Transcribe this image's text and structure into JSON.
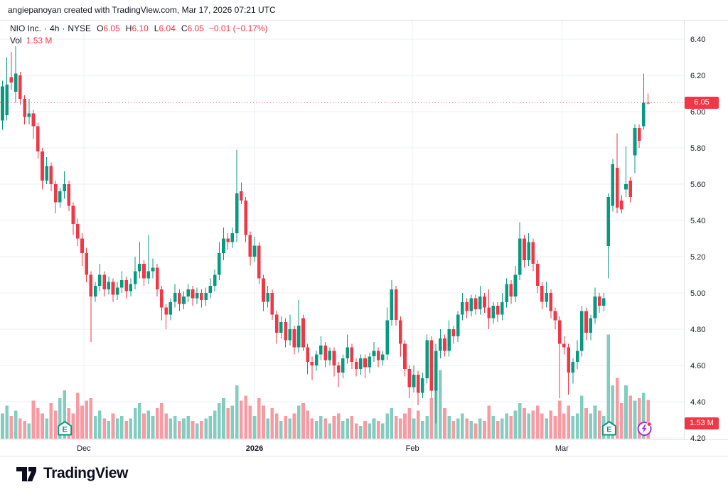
{
  "header": {
    "attribution": "angiepanoyan created with TradingView.com, Mar 17, 2026 07:21 UTC"
  },
  "legend": {
    "symbol": "NIO Inc.",
    "separator": "·",
    "interval": "4h",
    "exchange": "NYSE",
    "o_label": "O",
    "o_value": "6.05",
    "h_label": "H",
    "h_value": "6.10",
    "l_label": "L",
    "l_value": "6.04",
    "c_label": "C",
    "c_value": "6.05",
    "change": "−0.01 (−0.17%)",
    "vol_label": "Vol",
    "vol_value": "1.53 M"
  },
  "price_axis": {
    "last_price_label": "6.05",
    "last_volume_label": "1.53 M"
  },
  "footer": {
    "logo_text": "TradingView"
  },
  "colors": {
    "up": "#089981",
    "down": "#f23645",
    "vol_up": "#83ccc0",
    "vol_down": "#f89aa2",
    "grid": "#eceff4",
    "axis_line": "#e0e3eb",
    "text": "#131722",
    "badge": "#f23645",
    "marker": "#089981",
    "flash": "#a333d8"
  },
  "chart_data": {
    "type": "candlestick+volume",
    "title": "NIO Inc. · 4h · NYSE",
    "ylim": [
      4.2,
      6.4
    ],
    "price_ticks": [
      6.4,
      6.2,
      6.0,
      5.8,
      5.6,
      5.4,
      5.2,
      5.0,
      4.8,
      4.6,
      4.4,
      4.2
    ],
    "time_labels": [
      {
        "label": "Dec",
        "index": 18.4,
        "major": false
      },
      {
        "label": "2026",
        "index": 57,
        "major": true
      },
      {
        "label": "Feb",
        "index": 92.7,
        "major": false
      },
      {
        "label": "Mar",
        "index": 126.5,
        "major": false
      }
    ],
    "price_line": {
      "value": 6.05
    },
    "last": {
      "open": 6.05,
      "high": 6.1,
      "low": 6.04,
      "close": 6.05,
      "change": -0.01,
      "change_pct": -0.17,
      "volume_m": 1.53
    },
    "markers": [
      {
        "type": "earnings",
        "index": 14.1
      },
      {
        "type": "earnings",
        "index": 137.2
      },
      {
        "type": "flash",
        "index": 145.2
      }
    ],
    "volume_axis": {
      "max_m": 4.2
    },
    "candles_format": [
      "open",
      "high",
      "low",
      "close",
      "volume_m"
    ],
    "candles": [
      [
        5.95,
        6.17,
        5.9,
        6.14,
        1.0
      ],
      [
        5.98,
        6.3,
        5.95,
        6.15,
        1.3
      ],
      [
        6.19,
        6.33,
        6.12,
        6.16,
        0.9
      ],
      [
        6.11,
        6.36,
        6.05,
        6.21,
        1.1
      ],
      [
        6.2,
        6.22,
        6.04,
        6.07,
        0.8
      ],
      [
        6.07,
        6.09,
        5.93,
        5.97,
        0.7
      ],
      [
        5.97,
        6.07,
        5.93,
        5.99,
        0.6
      ],
      [
        5.99,
        6.01,
        5.85,
        5.92,
        1.5
      ],
      [
        5.92,
        5.94,
        5.74,
        5.78,
        1.2
      ],
      [
        5.78,
        5.8,
        5.57,
        5.62,
        1.0
      ],
      [
        5.62,
        5.75,
        5.6,
        5.7,
        0.8
      ],
      [
        5.7,
        5.72,
        5.56,
        5.6,
        1.4
      ],
      [
        5.6,
        5.62,
        5.44,
        5.5,
        1.1
      ],
      [
        5.5,
        5.58,
        5.47,
        5.56,
        1.6
      ],
      [
        5.56,
        5.67,
        5.52,
        5.6,
        1.9
      ],
      [
        5.6,
        5.62,
        5.45,
        5.48,
        1.2
      ],
      [
        5.48,
        5.5,
        5.32,
        5.38,
        1.0
      ],
      [
        5.38,
        5.41,
        5.26,
        5.3,
        1.8
      ],
      [
        5.3,
        5.33,
        5.15,
        5.22,
        1.3
      ],
      [
        5.22,
        5.25,
        5.06,
        5.1,
        1.5
      ],
      [
        5.1,
        5.12,
        4.73,
        4.98,
        1.6
      ],
      [
        4.98,
        5.06,
        4.95,
        5.04,
        0.9
      ],
      [
        5.04,
        5.16,
        5.01,
        5.1,
        1.1
      ],
      [
        5.1,
        5.12,
        4.98,
        5.02,
        0.8
      ],
      [
        5.02,
        5.09,
        4.99,
        5.06,
        0.7
      ],
      [
        5.06,
        5.08,
        4.95,
        4.99,
        1.0
      ],
      [
        4.99,
        5.06,
        4.96,
        5.03,
        0.8
      ],
      [
        5.03,
        5.12,
        5.0,
        5.07,
        0.9
      ],
      [
        5.07,
        5.09,
        4.97,
        5.01,
        0.7
      ],
      [
        5.01,
        5.08,
        4.98,
        5.05,
        0.8
      ],
      [
        5.05,
        5.2,
        5.02,
        5.12,
        1.2
      ],
      [
        5.12,
        5.28,
        5.08,
        5.16,
        1.4
      ],
      [
        5.16,
        5.18,
        5.04,
        5.08,
        1.0
      ],
      [
        5.08,
        5.32,
        5.05,
        5.12,
        1.1
      ],
      [
        5.12,
        5.19,
        5.08,
        5.14,
        0.9
      ],
      [
        5.14,
        5.16,
        4.98,
        5.02,
        1.2
      ],
      [
        5.02,
        5.04,
        4.85,
        4.92,
        1.4
      ],
      [
        4.92,
        4.94,
        4.8,
        4.88,
        1.0
      ],
      [
        4.88,
        4.97,
        4.85,
        4.95,
        0.8
      ],
      [
        4.95,
        5.05,
        4.92,
        5.0,
        0.9
      ],
      [
        5.0,
        5.02,
        4.9,
        4.94,
        0.7
      ],
      [
        4.94,
        5.01,
        4.91,
        4.98,
        0.8
      ],
      [
        4.98,
        5.05,
        4.95,
        5.02,
        0.9
      ],
      [
        5.02,
        5.04,
        4.93,
        4.97,
        0.7
      ],
      [
        4.97,
        5.03,
        4.94,
        5.0,
        0.6
      ],
      [
        5.0,
        5.02,
        4.92,
        4.96,
        0.7
      ],
      [
        4.96,
        5.03,
        4.93,
        5.0,
        0.8
      ],
      [
        5.0,
        5.08,
        4.97,
        5.04,
        0.9
      ],
      [
        5.04,
        5.13,
        5.01,
        5.1,
        1.1
      ],
      [
        5.1,
        5.28,
        5.07,
        5.22,
        1.4
      ],
      [
        5.22,
        5.36,
        5.18,
        5.3,
        1.6
      ],
      [
        5.3,
        5.33,
        5.24,
        5.28,
        1.2
      ],
      [
        5.28,
        5.36,
        5.25,
        5.33,
        1.3
      ],
      [
        5.33,
        5.79,
        5.28,
        5.55,
        2.1
      ],
      [
        5.56,
        5.61,
        5.49,
        5.51,
        1.5
      ],
      [
        5.51,
        5.53,
        5.28,
        5.32,
        1.7
      ],
      [
        5.32,
        5.34,
        5.15,
        5.2,
        1.3
      ],
      [
        5.2,
        5.31,
        5.17,
        5.26,
        0.9
      ],
      [
        5.26,
        5.28,
        5.05,
        5.08,
        1.6
      ],
      [
        5.08,
        5.1,
        4.9,
        4.95,
        1.3
      ],
      [
        4.95,
        5.04,
        4.92,
        5.0,
        0.8
      ],
      [
        5.0,
        5.02,
        4.85,
        4.88,
        1.2
      ],
      [
        4.88,
        4.9,
        4.72,
        4.78,
        1.0
      ],
      [
        4.78,
        4.87,
        4.75,
        4.84,
        0.7
      ],
      [
        4.84,
        4.86,
        4.7,
        4.74,
        0.9
      ],
      [
        4.74,
        4.88,
        4.71,
        4.8,
        0.8
      ],
      [
        4.8,
        4.82,
        4.66,
        4.7,
        1.0
      ],
      [
        4.7,
        4.96,
        4.67,
        4.82,
        1.3
      ],
      [
        4.86,
        4.88,
        4.68,
        4.7,
        1.4
      ],
      [
        4.7,
        4.72,
        4.55,
        4.62,
        1.1
      ],
      [
        4.62,
        4.65,
        4.52,
        4.6,
        0.8
      ],
      [
        4.6,
        4.68,
        4.57,
        4.66,
        0.7
      ],
      [
        4.66,
        4.76,
        4.63,
        4.71,
        0.9
      ],
      [
        4.71,
        4.73,
        4.59,
        4.63,
        0.8
      ],
      [
        4.63,
        4.7,
        4.6,
        4.68,
        0.6
      ],
      [
        4.68,
        4.7,
        4.54,
        4.6,
        0.9
      ],
      [
        4.6,
        4.62,
        4.48,
        4.56,
        1.0
      ],
      [
        4.56,
        4.66,
        4.53,
        4.64,
        0.7
      ],
      [
        4.64,
        4.77,
        4.61,
        4.7,
        0.8
      ],
      [
        4.7,
        4.72,
        4.58,
        4.62,
        0.9
      ],
      [
        4.62,
        4.64,
        4.54,
        4.58,
        0.6
      ],
      [
        4.58,
        4.66,
        4.55,
        4.64,
        0.5
      ],
      [
        4.64,
        4.66,
        4.53,
        4.59,
        0.7
      ],
      [
        4.59,
        4.67,
        4.56,
        4.65,
        0.6
      ],
      [
        4.65,
        4.73,
        4.62,
        4.68,
        0.8
      ],
      [
        4.68,
        4.7,
        4.59,
        4.63,
        0.7
      ],
      [
        4.63,
        4.68,
        4.6,
        4.66,
        0.6
      ],
      [
        4.66,
        4.92,
        4.63,
        4.85,
        1.0
      ],
      [
        4.85,
        5.07,
        4.82,
        5.02,
        1.2
      ],
      [
        5.02,
        5.04,
        4.82,
        4.85,
        0.9
      ],
      [
        4.85,
        4.87,
        4.65,
        4.72,
        0.8
      ],
      [
        4.72,
        4.74,
        4.54,
        4.58,
        1.0
      ],
      [
        4.58,
        4.6,
        4.42,
        4.48,
        1.2
      ],
      [
        4.48,
        4.6,
        4.45,
        4.55,
        0.8
      ],
      [
        4.55,
        4.57,
        4.38,
        4.45,
        1.1
      ],
      [
        4.45,
        4.56,
        4.42,
        4.53,
        0.7
      ],
      [
        4.53,
        4.77,
        4.5,
        4.74,
        0.9
      ],
      [
        4.74,
        4.76,
        4.42,
        4.46,
        1.6
      ],
      [
        4.46,
        4.72,
        4.28,
        4.68,
        2.9
      ],
      [
        4.68,
        4.8,
        4.64,
        4.75,
        2.7
      ],
      [
        4.75,
        4.77,
        4.65,
        4.68,
        1.2
      ],
      [
        4.68,
        4.85,
        4.65,
        4.8,
        0.9
      ],
      [
        4.8,
        4.82,
        4.72,
        4.76,
        0.7
      ],
      [
        4.76,
        4.9,
        4.73,
        4.88,
        0.8
      ],
      [
        4.88,
        5.0,
        4.85,
        4.95,
        1.0
      ],
      [
        4.95,
        4.97,
        4.86,
        4.9,
        0.8
      ],
      [
        4.9,
        4.99,
        4.87,
        4.97,
        0.7
      ],
      [
        4.97,
        4.99,
        4.88,
        4.91,
        0.6
      ],
      [
        4.91,
        5.04,
        4.88,
        4.98,
        0.8
      ],
      [
        4.98,
        5.0,
        4.89,
        4.92,
        0.7
      ],
      [
        4.92,
        5.02,
        4.8,
        4.86,
        1.3
      ],
      [
        4.86,
        4.95,
        4.83,
        4.93,
        0.9
      ],
      [
        4.93,
        4.95,
        4.84,
        4.88,
        0.7
      ],
      [
        4.88,
        5.0,
        4.85,
        4.95,
        0.8
      ],
      [
        4.95,
        5.08,
        4.92,
        5.05,
        1.0
      ],
      [
        5.05,
        5.07,
        4.94,
        4.98,
        0.9
      ],
      [
        4.98,
        5.15,
        4.95,
        5.1,
        1.1
      ],
      [
        5.1,
        5.39,
        5.07,
        5.3,
        1.4
      ],
      [
        5.3,
        5.32,
        5.14,
        5.18,
        1.2
      ],
      [
        5.18,
        5.33,
        5.15,
        5.28,
        1.0
      ],
      [
        5.28,
        5.3,
        5.12,
        5.16,
        1.1
      ],
      [
        5.16,
        5.18,
        5.0,
        5.04,
        1.3
      ],
      [
        5.04,
        5.06,
        4.91,
        4.95,
        1.0
      ],
      [
        4.95,
        5.06,
        4.92,
        5.0,
        0.8
      ],
      [
        5.0,
        5.02,
        4.86,
        4.9,
        1.1
      ],
      [
        4.9,
        4.92,
        4.8,
        4.85,
        0.9
      ],
      [
        4.85,
        4.87,
        4.42,
        4.72,
        1.5
      ],
      [
        4.72,
        4.76,
        4.66,
        4.7,
        1.0
      ],
      [
        4.7,
        4.72,
        4.44,
        4.56,
        1.3
      ],
      [
        4.56,
        4.64,
        4.5,
        4.62,
        0.9
      ],
      [
        4.62,
        4.74,
        4.58,
        4.68,
        1.0
      ],
      [
        4.68,
        4.93,
        4.65,
        4.9,
        1.7
      ],
      [
        4.9,
        4.92,
        4.74,
        4.78,
        1.2
      ],
      [
        4.78,
        4.88,
        4.74,
        4.86,
        1.0
      ],
      [
        4.86,
        5.03,
        4.83,
        4.98,
        1.3
      ],
      [
        4.98,
        5.0,
        4.89,
        4.93,
        1.1
      ],
      [
        4.93,
        5.0,
        4.9,
        4.97,
        0.9
      ],
      [
        5.26,
        5.55,
        5.08,
        5.53,
        4.1
      ],
      [
        5.48,
        5.74,
        5.45,
        5.71,
        2.1
      ],
      [
        5.69,
        5.88,
        5.44,
        5.47,
        2.4
      ],
      [
        5.51,
        5.54,
        5.44,
        5.46,
        1.4
      ],
      [
        5.57,
        5.81,
        5.53,
        5.6,
        2.1
      ],
      [
        5.62,
        5.64,
        5.5,
        5.53,
        1.7
      ],
      [
        5.76,
        5.93,
        5.66,
        5.91,
        1.5
      ],
      [
        5.91,
        5.93,
        5.8,
        5.84,
        1.6
      ],
      [
        5.92,
        6.21,
        5.9,
        6.05,
        1.8
      ],
      [
        6.05,
        6.1,
        6.04,
        6.05,
        1.53
      ]
    ]
  }
}
